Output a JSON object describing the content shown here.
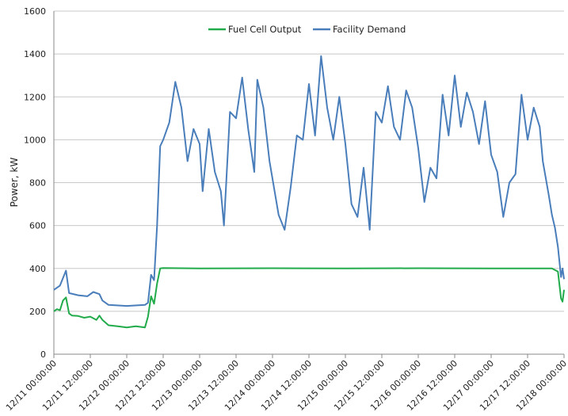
{
  "chart_data": {
    "type": "line",
    "title": "",
    "xlabel": "",
    "ylabel": "Power, kW",
    "ylim": [
      0,
      1600
    ],
    "xlim": [
      "12/11 00:00:00",
      "12/18 00:00:00"
    ],
    "x_tick_labels": [
      "12/11 00:00:00",
      "12/11 12:00:00",
      "12/12 00:00:00",
      "12/12 12:00:00",
      "12/13 00:00:00",
      "12/13 12:00:00",
      "12/14 00:00:00",
      "12/14 12:00:00",
      "12/15 00:00:00",
      "12/15 12:00:00",
      "12/16 00:00:00",
      "12/16 12:00:00",
      "12/17 00:00:00",
      "12/17 12:00:00",
      "12/18 00:00:00"
    ],
    "y_ticks": [
      0,
      200,
      400,
      600,
      800,
      1000,
      1200,
      1400,
      1600
    ],
    "grid": "horizontal",
    "legend_position": "top-center",
    "series": [
      {
        "name": "Fuel Cell Output",
        "color": "#22ab4b",
        "points": [
          [
            "12/11 00:00:00",
            200
          ],
          [
            "12/11 01:00:00",
            210
          ],
          [
            "12/11 02:00:00",
            205
          ],
          [
            "12/11 03:00:00",
            250
          ],
          [
            "12/11 04:00:00",
            265
          ],
          [
            "12/11 05:00:00",
            190
          ],
          [
            "12/11 06:00:00",
            180
          ],
          [
            "12/11 08:00:00",
            178
          ],
          [
            "12/11 10:00:00",
            170
          ],
          [
            "12/11 12:00:00",
            175
          ],
          [
            "12/11 14:00:00",
            160
          ],
          [
            "12/11 15:00:00",
            180
          ],
          [
            "12/11 16:00:00",
            160
          ],
          [
            "12/11 18:00:00",
            135
          ],
          [
            "12/11 21:00:00",
            130
          ],
          [
            "12/12 00:00:00",
            125
          ],
          [
            "12/12 03:00:00",
            130
          ],
          [
            "12/12 06:00:00",
            125
          ],
          [
            "12/12 07:00:00",
            175
          ],
          [
            "12/12 08:00:00",
            270
          ],
          [
            "12/12 09:00:00",
            235
          ],
          [
            "12/12 10:00:00",
            330
          ],
          [
            "12/12 11:00:00",
            400
          ],
          [
            "12/12 12:00:00",
            402
          ],
          [
            "12/13 00:00:00",
            400
          ],
          [
            "12/14 00:00:00",
            401
          ],
          [
            "12/15 00:00:00",
            400
          ],
          [
            "12/16 00:00:00",
            401
          ],
          [
            "12/17 00:00:00",
            400
          ],
          [
            "12/17 20:00:00",
            400
          ],
          [
            "12/17 22:00:00",
            385
          ],
          [
            "12/17 23:00:00",
            260
          ],
          [
            "12/17 23:30:00",
            245
          ],
          [
            "12/18 00:00:00",
            300
          ]
        ]
      },
      {
        "name": "Facility Demand",
        "color": "#4a7ebb",
        "points": [
          [
            "12/11 00:00:00",
            300
          ],
          [
            "12/11 02:00:00",
            320
          ],
          [
            "12/11 04:00:00",
            390
          ],
          [
            "12/11 05:00:00",
            285
          ],
          [
            "12/11 08:00:00",
            275
          ],
          [
            "12/11 11:00:00",
            270
          ],
          [
            "12/11 13:00:00",
            290
          ],
          [
            "12/11 15:00:00",
            280
          ],
          [
            "12/11 16:00:00",
            250
          ],
          [
            "12/11 18:00:00",
            230
          ],
          [
            "12/12 00:00:00",
            225
          ],
          [
            "12/12 06:00:00",
            230
          ],
          [
            "12/12 07:00:00",
            240
          ],
          [
            "12/12 08:00:00",
            370
          ],
          [
            "12/12 09:00:00",
            345
          ],
          [
            "12/12 10:00:00",
            600
          ],
          [
            "12/12 11:00:00",
            970
          ],
          [
            "12/12 12:00:00",
            1000
          ],
          [
            "12/12 14:00:00",
            1080
          ],
          [
            "12/12 16:00:00",
            1270
          ],
          [
            "12/12 18:00:00",
            1150
          ],
          [
            "12/12 20:00:00",
            900
          ],
          [
            "12/12 22:00:00",
            1050
          ],
          [
            "12/13 00:00:00",
            980
          ],
          [
            "12/13 01:00:00",
            760
          ],
          [
            "12/13 03:00:00",
            1050
          ],
          [
            "12/13 05:00:00",
            850
          ],
          [
            "12/13 07:00:00",
            760
          ],
          [
            "12/13 08:00:00",
            600
          ],
          [
            "12/13 10:00:00",
            1130
          ],
          [
            "12/13 12:00:00",
            1100
          ],
          [
            "12/13 14:00:00",
            1290
          ],
          [
            "12/13 16:00:00",
            1050
          ],
          [
            "12/13 18:00:00",
            850
          ],
          [
            "12/13 19:00:00",
            1280
          ],
          [
            "12/13 21:00:00",
            1150
          ],
          [
            "12/13 23:00:00",
            900
          ],
          [
            "12/14 02:00:00",
            650
          ],
          [
            "12/14 04:00:00",
            580
          ],
          [
            "12/14 06:00:00",
            780
          ],
          [
            "12/14 08:00:00",
            1020
          ],
          [
            "12/14 10:00:00",
            1000
          ],
          [
            "12/14 12:00:00",
            1260
          ],
          [
            "12/14 14:00:00",
            1020
          ],
          [
            "12/14 16:00:00",
            1390
          ],
          [
            "12/14 18:00:00",
            1150
          ],
          [
            "12/14 20:00:00",
            1000
          ],
          [
            "12/14 22:00:00",
            1200
          ],
          [
            "12/15 00:00:00",
            980
          ],
          [
            "12/15 02:00:00",
            700
          ],
          [
            "12/15 04:00:00",
            640
          ],
          [
            "12/15 06:00:00",
            870
          ],
          [
            "12/15 08:00:00",
            580
          ],
          [
            "12/15 10:00:00",
            1130
          ],
          [
            "12/15 12:00:00",
            1080
          ],
          [
            "12/15 14:00:00",
            1250
          ],
          [
            "12/15 16:00:00",
            1060
          ],
          [
            "12/15 18:00:00",
            1000
          ],
          [
            "12/15 20:00:00",
            1230
          ],
          [
            "12/15 22:00:00",
            1150
          ],
          [
            "12/16 00:00:00",
            960
          ],
          [
            "12/16 02:00:00",
            710
          ],
          [
            "12/16 04:00:00",
            870
          ],
          [
            "12/16 06:00:00",
            820
          ],
          [
            "12/16 08:00:00",
            1210
          ],
          [
            "12/16 10:00:00",
            1020
          ],
          [
            "12/16 12:00:00",
            1300
          ],
          [
            "12/16 14:00:00",
            1060
          ],
          [
            "12/16 16:00:00",
            1220
          ],
          [
            "12/16 18:00:00",
            1130
          ],
          [
            "12/16 20:00:00",
            980
          ],
          [
            "12/16 22:00:00",
            1180
          ],
          [
            "12/17 00:00:00",
            930
          ],
          [
            "12/17 02:00:00",
            850
          ],
          [
            "12/17 04:00:00",
            640
          ],
          [
            "12/17 06:00:00",
            800
          ],
          [
            "12/17 08:00:00",
            840
          ],
          [
            "12/17 10:00:00",
            1210
          ],
          [
            "12/17 12:00:00",
            1000
          ],
          [
            "12/17 14:00:00",
            1150
          ],
          [
            "12/17 16:00:00",
            1060
          ],
          [
            "12/17 17:00:00",
            900
          ],
          [
            "12/17 19:00:00",
            740
          ],
          [
            "12/17 20:00:00",
            650
          ],
          [
            "12/17 21:00:00",
            590
          ],
          [
            "12/17 22:00:00",
            500
          ],
          [
            "12/17 23:00:00",
            360
          ],
          [
            "12/17 23:30:00",
            400
          ],
          [
            "12/18 00:00:00",
            350
          ]
        ]
      }
    ]
  }
}
